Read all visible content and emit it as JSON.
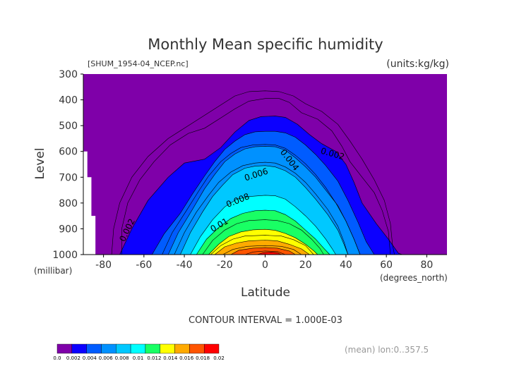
{
  "chart_data": {
    "type": "heatmap",
    "title": "Monthly Mean specific humidity",
    "file_label": "[SHUM_1954-04_NCEP.nc]",
    "units_label": "(units:kg/kg)",
    "xlabel": "Latitude",
    "ylabel": "Level",
    "x_unit": "(degrees_north)",
    "y_unit": "(millibar)",
    "xlim": [
      -90,
      90
    ],
    "ylim": [
      1000,
      300
    ],
    "x_ticks": [
      -80,
      -60,
      -40,
      -20,
      0,
      20,
      40,
      60,
      80
    ],
    "y_ticks": [
      300,
      400,
      500,
      600,
      700,
      800,
      900,
      1000
    ],
    "contour_interval_text": "CONTOUR INTERVAL = 1.000E-03",
    "footer_text": "(mean) lon:0..357.5",
    "contour_labels": [
      "0.002",
      "0.004",
      "0.006",
      "0.008",
      "0.01",
      "0.002"
    ],
    "colorbar": {
      "labels": [
        "0.0",
        "0.002",
        "0.004",
        "0.006",
        "0.008",
        "0.01",
        "0.012",
        "0.014",
        "0.016",
        "0.018",
        "0.02"
      ],
      "colors": [
        "#7f00a9",
        "#0c00ff",
        "#005cff",
        "#0091ff",
        "#00c8ff",
        "#00ffff",
        "#19ff64",
        "#ffff00",
        "#ffaa00",
        "#ff5500",
        "#ff0000"
      ]
    },
    "bands": [
      {
        "value": 0.002,
        "color": "#0c00ff",
        "profile": [
          [
            -72,
            1000
          ],
          [
            -66,
            900
          ],
          [
            -58,
            790
          ],
          [
            -48,
            700
          ],
          [
            -40,
            645
          ],
          [
            -30,
            630
          ],
          [
            -22,
            585
          ],
          [
            -15,
            525
          ],
          [
            -8,
            480
          ],
          [
            -2,
            465
          ],
          [
            5,
            463
          ],
          [
            10,
            468
          ],
          [
            16,
            495
          ],
          [
            22,
            535
          ],
          [
            28,
            570
          ],
          [
            35,
            600
          ],
          [
            40,
            650
          ],
          [
            44,
            720
          ],
          [
            48,
            800
          ],
          [
            55,
            880
          ],
          [
            61,
            940
          ],
          [
            66,
            995
          ],
          [
            68,
            1000
          ]
        ]
      },
      {
        "value": 0.003,
        "color": "#005cff",
        "profile": [
          [
            -56,
            1000
          ],
          [
            -50,
            920
          ],
          [
            -42,
            840
          ],
          [
            -36,
            765
          ],
          [
            -30,
            695
          ],
          [
            -25,
            640
          ],
          [
            -20,
            592
          ],
          [
            -15,
            560
          ],
          [
            -10,
            535
          ],
          [
            -5,
            524
          ],
          [
            0,
            522
          ],
          [
            5,
            522
          ],
          [
            10,
            528
          ],
          [
            15,
            545
          ],
          [
            20,
            575
          ],
          [
            25,
            612
          ],
          [
            30,
            655
          ],
          [
            36,
            715
          ],
          [
            41,
            790
          ],
          [
            46,
            875
          ],
          [
            50,
            950
          ],
          [
            54,
            1000
          ]
        ]
      },
      {
        "value": 0.005,
        "color": "#0091ff",
        "profile": [
          [
            -48,
            1000
          ],
          [
            -43,
            915
          ],
          [
            -36,
            825
          ],
          [
            -30,
            745
          ],
          [
            -25,
            690
          ],
          [
            -20,
            640
          ],
          [
            -15,
            610
          ],
          [
            -10,
            590
          ],
          [
            -5,
            582
          ],
          [
            0,
            580
          ],
          [
            5,
            582
          ],
          [
            10,
            595
          ],
          [
            15,
            625
          ],
          [
            20,
            660
          ],
          [
            25,
            700
          ],
          [
            30,
            750
          ],
          [
            36,
            810
          ],
          [
            40,
            870
          ],
          [
            44,
            940
          ],
          [
            47,
            1000
          ]
        ]
      },
      {
        "value": 0.007,
        "color": "#00c8ff",
        "profile": [
          [
            -42,
            1000
          ],
          [
            -37,
            915
          ],
          [
            -31,
            835
          ],
          [
            -26,
            775
          ],
          [
            -21,
            730
          ],
          [
            -16,
            690
          ],
          [
            -10,
            665
          ],
          [
            -5,
            657
          ],
          [
            0,
            655
          ],
          [
            5,
            660
          ],
          [
            10,
            675
          ],
          [
            15,
            700
          ],
          [
            20,
            740
          ],
          [
            25,
            785
          ],
          [
            31,
            845
          ],
          [
            36,
            905
          ],
          [
            39,
            960
          ],
          [
            41,
            1000
          ]
        ]
      },
      {
        "value": 0.008,
        "color": "#00ffff",
        "profile": [
          [
            -37,
            1000
          ],
          [
            -32,
            930
          ],
          [
            -26,
            865
          ],
          [
            -20,
            815
          ],
          [
            -14,
            785
          ],
          [
            -8,
            775
          ],
          [
            0,
            770
          ],
          [
            5,
            772
          ],
          [
            10,
            785
          ],
          [
            15,
            815
          ],
          [
            20,
            850
          ],
          [
            25,
            890
          ],
          [
            30,
            940
          ],
          [
            33,
            975
          ],
          [
            35,
            1000
          ]
        ]
      },
      {
        "value": 0.009,
        "color": "#19ff64",
        "profile": [
          [
            -34,
            1000
          ],
          [
            -29,
            940
          ],
          [
            -23,
            895
          ],
          [
            -17,
            860
          ],
          [
            -11,
            840
          ],
          [
            -5,
            830
          ],
          [
            0,
            828
          ],
          [
            5,
            830
          ],
          [
            10,
            845
          ],
          [
            15,
            870
          ],
          [
            20,
            905
          ],
          [
            25,
            940
          ],
          [
            29,
            975
          ],
          [
            32,
            1000
          ]
        ]
      },
      {
        "value": 0.011,
        "color": "#ffff00",
        "profile": [
          [
            -28,
            1000
          ],
          [
            -23,
            960
          ],
          [
            -18,
            930
          ],
          [
            -12,
            912
          ],
          [
            -6,
            904
          ],
          [
            0,
            902
          ],
          [
            5,
            906
          ],
          [
            10,
            918
          ],
          [
            15,
            935
          ],
          [
            20,
            960
          ],
          [
            24,
            985
          ],
          [
            26,
            1000
          ]
        ]
      },
      {
        "value": 0.013,
        "color": "#ffaa00",
        "profile": [
          [
            -25,
            1000
          ],
          [
            -20,
            970
          ],
          [
            -14,
            955
          ],
          [
            -8,
            947
          ],
          [
            0,
            944
          ],
          [
            6,
            947
          ],
          [
            12,
            960
          ],
          [
            18,
            978
          ],
          [
            22,
            1000
          ]
        ]
      },
      {
        "value": 0.015,
        "color": "#ff5500",
        "profile": [
          [
            -17,
            1000
          ],
          [
            -13,
            983
          ],
          [
            -6,
            975
          ],
          [
            0,
            973
          ],
          [
            6,
            975
          ],
          [
            12,
            986
          ],
          [
            15,
            1000
          ]
        ]
      },
      {
        "value": 0.017,
        "color": "#ff0000",
        "profile": [
          [
            -4,
            1000
          ],
          [
            -1,
            993
          ],
          [
            3,
            990
          ],
          [
            6,
            993
          ],
          [
            8,
            1000
          ]
        ]
      }
    ],
    "extra_contours": [
      {
        "value": 0.001,
        "profile": [
          [
            -71,
            1000
          ],
          [
            -71,
            900
          ],
          [
            -68,
            800
          ],
          [
            -62,
            710
          ],
          [
            -55,
            640
          ],
          [
            -47,
            575
          ],
          [
            -38,
            530
          ],
          [
            -30,
            510
          ],
          [
            -22,
            470
          ],
          [
            -15,
            435
          ],
          [
            -8,
            405
          ],
          [
            0,
            395
          ],
          [
            7,
            395
          ],
          [
            12,
            410
          ],
          [
            18,
            450
          ],
          [
            26,
            475
          ],
          [
            33,
            520
          ],
          [
            38,
            580
          ],
          [
            42,
            640
          ],
          [
            48,
            700
          ],
          [
            54,
            760
          ],
          [
            58,
            830
          ],
          [
            61,
            910
          ],
          [
            62,
            1000
          ]
        ]
      },
      {
        "value": 0.001,
        "profile": [
          [
            -76,
            1000
          ],
          [
            -75,
            900
          ],
          [
            -72,
            800
          ],
          [
            -66,
            700
          ],
          [
            -58,
            620
          ],
          [
            -48,
            550
          ],
          [
            -38,
            500
          ],
          [
            -30,
            460
          ],
          [
            -22,
            420
          ],
          [
            -15,
            385
          ],
          [
            -8,
            368
          ],
          [
            0,
            365
          ],
          [
            7,
            368
          ],
          [
            14,
            385
          ],
          [
            20,
            415
          ],
          [
            28,
            445
          ],
          [
            36,
            495
          ],
          [
            42,
            560
          ],
          [
            48,
            630
          ],
          [
            54,
            710
          ],
          [
            59,
            790
          ],
          [
            62,
            880
          ],
          [
            63,
            960
          ],
          [
            64,
            1000
          ]
        ]
      },
      {
        "value": 0.004,
        "profile": [
          [
            -51,
            1000
          ],
          [
            -46,
            915
          ],
          [
            -39,
            830
          ],
          [
            -33,
            755
          ],
          [
            -28,
            695
          ],
          [
            -22,
            640
          ],
          [
            -17,
            608
          ],
          [
            -12,
            585
          ],
          [
            -6,
            575
          ],
          [
            0,
            573
          ],
          [
            5,
            575
          ],
          [
            10,
            588
          ],
          [
            15,
            615
          ],
          [
            20,
            648
          ],
          [
            25,
            690
          ],
          [
            30,
            740
          ],
          [
            35,
            800
          ],
          [
            40,
            870
          ],
          [
            44,
            940
          ],
          [
            47,
            1000
          ]
        ]
      },
      {
        "value": 0.006,
        "profile": [
          [
            -45,
            1000
          ],
          [
            -40,
            915
          ],
          [
            -34,
            835
          ],
          [
            -28,
            770
          ],
          [
            -23,
            720
          ],
          [
            -17,
            680
          ],
          [
            -11,
            655
          ],
          [
            -5,
            645
          ],
          [
            0,
            642
          ],
          [
            5,
            645
          ],
          [
            10,
            660
          ],
          [
            15,
            685
          ],
          [
            20,
            720
          ],
          [
            25,
            765
          ],
          [
            31,
            825
          ],
          [
            36,
            890
          ],
          [
            39,
            950
          ],
          [
            41,
            1000
          ]
        ]
      },
      {
        "value": 0.01,
        "profile": [
          [
            -31,
            1000
          ],
          [
            -26,
            945
          ],
          [
            -20,
            905
          ],
          [
            -14,
            880
          ],
          [
            -8,
            868
          ],
          [
            0,
            865
          ],
          [
            6,
            868
          ],
          [
            12,
            880
          ],
          [
            18,
            905
          ],
          [
            23,
            940
          ],
          [
            27,
            975
          ],
          [
            29,
            1000
          ]
        ]
      },
      {
        "value": 0.012,
        "profile": [
          [
            -27,
            1000
          ],
          [
            -22,
            965
          ],
          [
            -16,
            940
          ],
          [
            -10,
            928
          ],
          [
            0,
            925
          ],
          [
            8,
            928
          ],
          [
            14,
            942
          ],
          [
            20,
            965
          ],
          [
            24,
            1000
          ]
        ]
      },
      {
        "value": 0.014,
        "profile": [
          [
            -21,
            1000
          ],
          [
            -16,
            980
          ],
          [
            -9,
            968
          ],
          [
            0,
            965
          ],
          [
            8,
            968
          ],
          [
            14,
            980
          ],
          [
            18,
            1000
          ]
        ]
      },
      {
        "value": 0.016,
        "profile": [
          [
            -10,
            1000
          ],
          [
            -6,
            990
          ],
          [
            0,
            986
          ],
          [
            6,
            988
          ],
          [
            10,
            1000
          ]
        ]
      }
    ]
  }
}
